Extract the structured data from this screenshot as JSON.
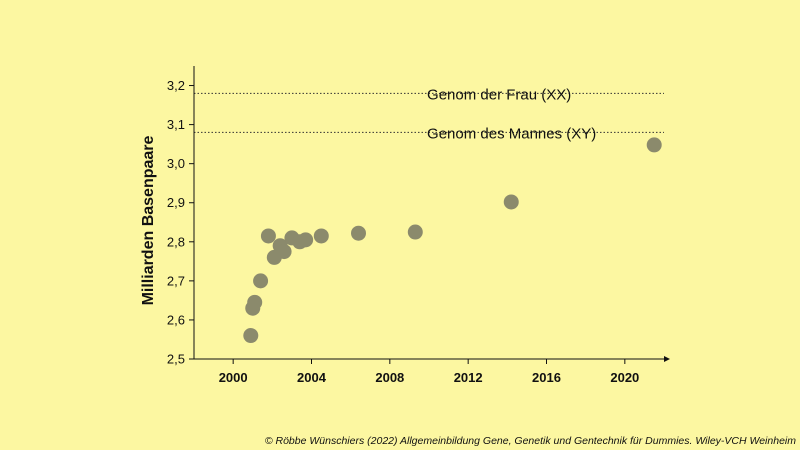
{
  "chart_data": {
    "type": "scatter",
    "title": "",
    "xlabel": "",
    "ylabel": "Milliarden Basenpaare",
    "xlim": [
      1998,
      2022
    ],
    "ylim": [
      2.5,
      3.25
    ],
    "x_ticks": [
      2000,
      2004,
      2008,
      2012,
      2016,
      2020
    ],
    "y_ticks": [
      2.5,
      2.6,
      2.7,
      2.8,
      2.9,
      3.0,
      3.1,
      3.2
    ],
    "y_tick_labels": [
      "2,5",
      "2,6",
      "2,7",
      "2,8",
      "2,9",
      "3,0",
      "3,1",
      "3,2"
    ],
    "grid": false,
    "marker_color": "#8b8a6c",
    "points": [
      {
        "x": 2000.9,
        "y": 2.56
      },
      {
        "x": 2001.0,
        "y": 2.63
      },
      {
        "x": 2001.1,
        "y": 2.645
      },
      {
        "x": 2001.4,
        "y": 2.7
      },
      {
        "x": 2001.8,
        "y": 2.815
      },
      {
        "x": 2002.1,
        "y": 2.76
      },
      {
        "x": 2002.4,
        "y": 2.79
      },
      {
        "x": 2002.6,
        "y": 2.775
      },
      {
        "x": 2003.0,
        "y": 2.81
      },
      {
        "x": 2003.4,
        "y": 2.8
      },
      {
        "x": 2003.7,
        "y": 2.805
      },
      {
        "x": 2004.5,
        "y": 2.815
      },
      {
        "x": 2006.4,
        "y": 2.822
      },
      {
        "x": 2009.3,
        "y": 2.825
      },
      {
        "x": 2014.2,
        "y": 2.902
      },
      {
        "x": 2021.5,
        "y": 3.048
      }
    ],
    "reference_lines": [
      {
        "y": 3.18,
        "label": "Genom der Frau (XX)",
        "label_x": 2009.9
      },
      {
        "y": 3.08,
        "label": "Genom des Mannes (XY)",
        "label_x": 2009.9
      }
    ]
  },
  "credit": "© Röbbe Wünschiers (2022) Allgemeinbildung Gene, Genetik und Gentechnik für Dummies. Wiley-VCH Weinheim"
}
